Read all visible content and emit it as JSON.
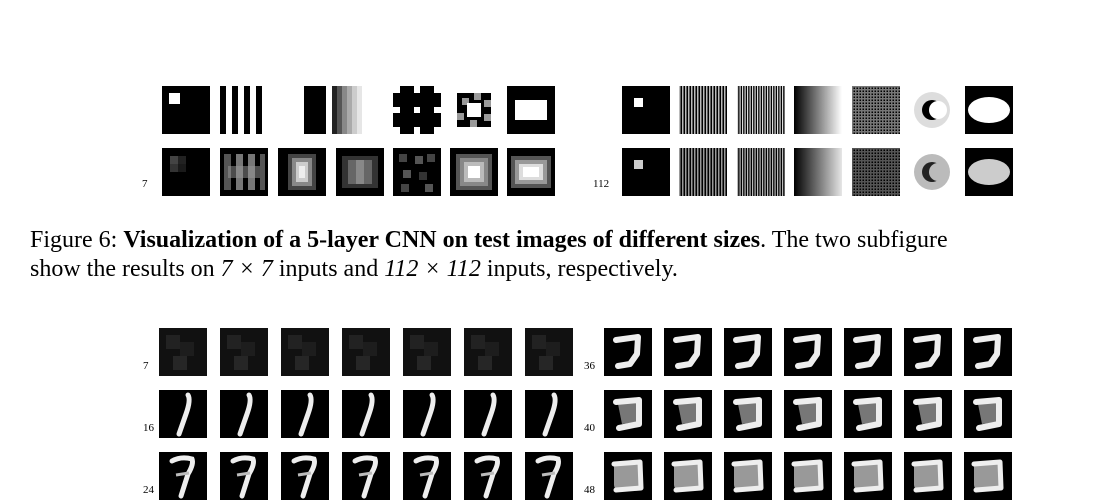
{
  "figure6": {
    "left_panel": {
      "row_labels": [
        "",
        "7"
      ]
    },
    "right_panel": {
      "row_labels": [
        "",
        "112"
      ]
    },
    "caption": {
      "prefix": "Figure 6: ",
      "bold": "Visualization of a 5-layer CNN on test images of different sizes",
      "line1_rest": ". The two subfigure",
      "line2_a": "show the results on ",
      "line2_b": "7 × 7",
      "line2_c": " inputs and ",
      "line2_d": "112 × 112",
      "line2_e": " inputs, respectively."
    }
  },
  "figure7": {
    "left_panel": {
      "row_labels": [
        "7",
        "16",
        "24"
      ]
    },
    "right_panel": {
      "row_labels": [
        "36",
        "40",
        "48"
      ]
    }
  }
}
